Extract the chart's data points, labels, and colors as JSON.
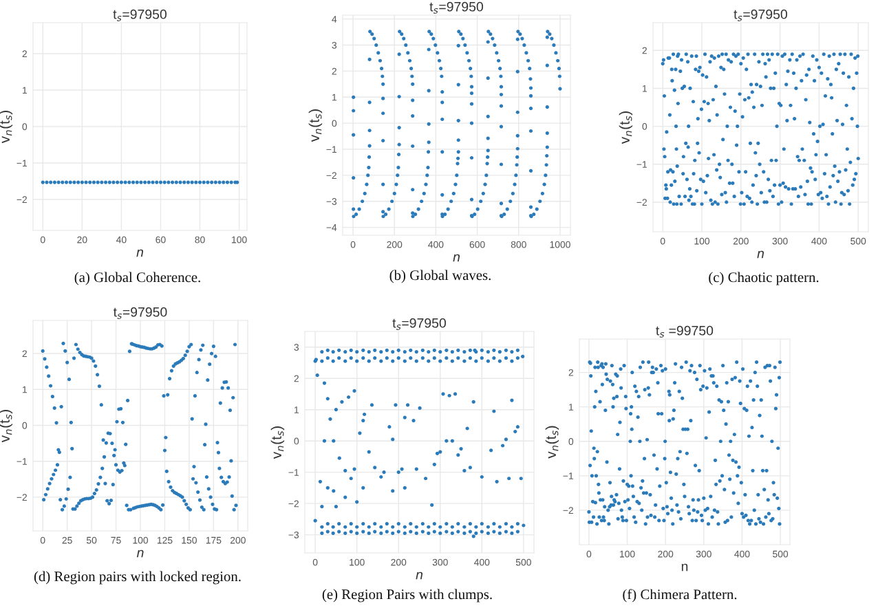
{
  "chart_data": [
    {
      "type": "scatter",
      "title": "t$_{s}$=97950",
      "xlabel": "n",
      "ylabel": "v$_{n}$(t$_{s}$)",
      "xlim": [
        -5,
        104
      ],
      "ylim": [
        -2.85,
        2.85
      ],
      "xticks": [
        0,
        20,
        40,
        60,
        80,
        100
      ],
      "yticks": [
        -2,
        -1,
        0,
        1,
        2
      ],
      "grid": true,
      "marker": "circle",
      "color": "#2b7bba",
      "annotations": [
        "(a) Global Coherence."
      ],
      "x": [
        0,
        2,
        4,
        6,
        8,
        10,
        12,
        14,
        16,
        18,
        20,
        22,
        24,
        26,
        28,
        30,
        32,
        34,
        36,
        38,
        40,
        42,
        44,
        46,
        48,
        50,
        52,
        54,
        56,
        58,
        60,
        62,
        64,
        66,
        68,
        70,
        72,
        74,
        76,
        78,
        80,
        82,
        84,
        86,
        88,
        90,
        92,
        94,
        96,
        98,
        99
      ],
      "values": [
        -1.53,
        -1.53,
        -1.53,
        -1.53,
        -1.53,
        -1.53,
        -1.53,
        -1.53,
        -1.53,
        -1.53,
        -1.53,
        -1.53,
        -1.53,
        -1.53,
        -1.53,
        -1.53,
        -1.53,
        -1.53,
        -1.53,
        -1.53,
        -1.53,
        -1.53,
        -1.53,
        -1.53,
        -1.53,
        -1.53,
        -1.53,
        -1.53,
        -1.53,
        -1.53,
        -1.53,
        -1.53,
        -1.53,
        -1.53,
        -1.53,
        -1.53,
        -1.53,
        -1.53,
        -1.53,
        -1.53,
        -1.53,
        -1.53,
        -1.53,
        -1.53,
        -1.53,
        -1.53,
        -1.53,
        -1.53,
        -1.53,
        -1.53,
        -1.53
      ]
    },
    {
      "type": "scatter",
      "title": "t$_{s}$=97950",
      "xlabel": "n",
      "ylabel": "v$_{n}$(t$_{s}$)",
      "xlim": [
        -50,
        1050
      ],
      "ylim": [
        -4.3,
        4.15
      ],
      "xticks": [
        0,
        200,
        400,
        600,
        800,
        1000
      ],
      "yticks": [
        -4,
        -3,
        -2,
        -1,
        0,
        1,
        2,
        3,
        4
      ],
      "grid": true,
      "marker": "circle",
      "color": "#2b7bba",
      "annotations": [
        "(b) Global waves."
      ],
      "x": [
        3,
        15,
        30,
        45,
        57,
        66,
        72,
        76,
        78,
        2,
        2,
        2,
        2,
        2,
        80,
        80,
        80,
        80,
        82,
        92,
        102,
        112,
        122,
        131,
        138,
        142,
        145,
        145,
        145,
        145,
        145,
        145,
        146,
        158,
        173,
        188,
        200,
        209,
        215,
        219,
        221,
        223,
        223,
        223,
        223,
        225,
        235,
        245,
        255,
        265,
        274,
        281,
        285,
        288,
        288,
        288,
        288,
        288,
        288,
        289,
        301,
        316,
        331,
        343,
        352,
        358,
        362,
        364,
        366,
        366,
        366,
        366,
        368,
        378,
        388,
        398,
        408,
        417,
        424,
        428,
        431,
        431,
        431,
        431,
        431,
        431,
        432,
        444,
        459,
        474,
        486,
        495,
        501,
        505,
        507,
        509,
        509,
        509,
        509,
        509,
        511,
        521,
        531,
        541,
        551,
        560,
        567,
        571,
        573,
        573,
        573,
        573,
        573,
        573,
        573,
        575,
        587,
        602,
        617,
        629,
        638,
        644,
        648,
        650,
        652,
        652,
        652,
        652,
        652,
        654,
        664,
        674,
        684,
        694,
        703,
        710,
        714,
        716,
        716,
        716,
        716,
        716,
        716,
        716,
        718,
        730,
        745,
        760,
        772,
        781,
        787,
        791,
        793,
        795,
        795,
        795,
        795,
        795,
        797,
        807,
        817,
        827,
        837,
        846,
        853,
        857,
        859,
        859,
        859,
        859,
        859,
        859,
        859,
        861,
        873,
        888,
        903,
        915,
        924,
        930,
        934,
        936,
        938,
        938,
        938,
        938,
        938,
        940,
        950,
        960,
        970,
        980,
        989,
        995,
        998,
        1000
      ],
      "values": [
        -3.58,
        -3.5,
        -3.3,
        -3.0,
        -2.7,
        -2.35,
        -2.0,
        -1.7,
        -1.3,
        1.0,
        0.48,
        -0.45,
        -2.1,
        -3.3,
        2.45,
        0.8,
        -0.28,
        -0.87,
        3.52,
        3.42,
        3.25,
        3.0,
        2.7,
        2.4,
        2.1,
        1.8,
        1.5,
        0.95,
        0.38,
        -0.67,
        -2.35,
        -3.4,
        -3.58,
        -3.5,
        -3.3,
        -3.0,
        -2.7,
        -2.35,
        -2.0,
        -1.7,
        -1.2,
        2.65,
        1.02,
        -0.17,
        -0.82,
        3.52,
        3.42,
        3.25,
        3.0,
        2.7,
        2.4,
        2.1,
        1.8,
        1.5,
        0.88,
        0.28,
        -0.88,
        -2.55,
        -3.45,
        -3.58,
        -3.5,
        -3.3,
        -3.0,
        -2.7,
        -2.35,
        -2.0,
        -1.7,
        -1.1,
        2.83,
        1.25,
        -0.03,
        -0.73,
        3.52,
        3.42,
        3.25,
        3.0,
        2.7,
        2.4,
        2.1,
        1.8,
        1.2,
        0.8,
        0.15,
        -1.1,
        -2.75,
        -3.5,
        -3.58,
        -3.5,
        -3.3,
        -3.0,
        -2.7,
        -2.35,
        -2.0,
        -1.55,
        -1.35,
        2.98,
        1.48,
        0.1,
        -0.65,
        -1.1,
        3.52,
        3.42,
        3.25,
        3.0,
        2.7,
        2.4,
        2.1,
        1.8,
        1.4,
        1.15,
        0.74,
        0.0,
        -1.33,
        -2.93,
        -3.55,
        -3.58,
        -3.5,
        -3.3,
        -3.0,
        -2.7,
        -2.35,
        -2.0,
        -1.55,
        -1.3,
        3.12,
        1.73,
        0.26,
        -0.58,
        -1.05,
        3.52,
        3.42,
        3.25,
        3.0,
        2.7,
        2.4,
        2.1,
        1.8,
        1.4,
        1.1,
        0.66,
        -0.13,
        -1.58,
        -3.08,
        -3.55,
        -3.58,
        -3.5,
        -3.3,
        -3.0,
        -2.7,
        -2.35,
        -2.0,
        -1.6,
        -1.3,
        3.22,
        1.98,
        0.42,
        -0.48,
        -0.98,
        3.52,
        3.42,
        3.25,
        3.0,
        2.7,
        2.4,
        2.1,
        1.7,
        1.35,
        1.05,
        0.57,
        -0.3,
        -1.83,
        -3.22,
        -3.55,
        -3.58,
        -3.5,
        -3.3,
        -3.0,
        -2.7,
        -2.35,
        -2.0,
        -1.6,
        -1.25,
        3.3,
        2.22,
        0.62,
        -0.38,
        -0.92,
        3.52,
        3.42,
        3.25,
        3.0,
        2.7,
        2.4,
        2.1,
        1.8,
        1.32
      ]
    },
    {
      "type": "scatter",
      "title": "t$_{s}$=97950",
      "xlabel": "n",
      "ylabel": "v$_{n}$(t$_{s}$)",
      "xlim": [
        -25,
        526
      ],
      "ylim": [
        -2.78,
        2.73
      ],
      "xticks": [
        0,
        100,
        200,
        300,
        400,
        500
      ],
      "yticks": [
        -2,
        -1,
        0,
        1,
        2
      ],
      "grid": true,
      "marker": "circle",
      "color": "#2b7bba",
      "annotations": [
        "(c) Chaotic pattern."
      ],
      "x": [
        0,
        2,
        3,
        4,
        5,
        6,
        8,
        9,
        10,
        12,
        13,
        14,
        17,
        18,
        19,
        20,
        22,
        23,
        24,
        26,
        27,
        28,
        30,
        31,
        33,
        34,
        35,
        36,
        37,
        38,
        39,
        40,
        42,
        45,
        47,
        48,
        50,
        52,
        53,
        55,
        57,
        59,
        60,
        62,
        64,
        65,
        66,
        67,
        69,
        70,
        72,
        74,
        76,
        78,
        79,
        81,
        82,
        84,
        86,
        87,
        89,
        90,
        92,
        93,
        95,
        97,
        99,
        100,
        102,
        104,
        106,
        108,
        110,
        112,
        114,
        116,
        117,
        119,
        121,
        123,
        125,
        127,
        129,
        131,
        132,
        134,
        136,
        138,
        139,
        141,
        143,
        145,
        147,
        149,
        151,
        152,
        154,
        156,
        158,
        160,
        162,
        163,
        165,
        167,
        168,
        171,
        173,
        175,
        177,
        179,
        181,
        183,
        185,
        187,
        189,
        191,
        193,
        195,
        197,
        199,
        200,
        202,
        204,
        206,
        208,
        210,
        212,
        214,
        216,
        218,
        220,
        222,
        224,
        226,
        228,
        229,
        231,
        233,
        235,
        237,
        239,
        240,
        242,
        244,
        246,
        248,
        250,
        252,
        254,
        256,
        258,
        260,
        262,
        264,
        266,
        268,
        270,
        272,
        274,
        276,
        278,
        280,
        282,
        284,
        286,
        288,
        290,
        292,
        294,
        296,
        298,
        300,
        302,
        304,
        306,
        308,
        310,
        312,
        314,
        316,
        318,
        320,
        322,
        325,
        327,
        329,
        331,
        333,
        335,
        337,
        339,
        341,
        343,
        345,
        347,
        349,
        351,
        353,
        355,
        357,
        359,
        362,
        364,
        366,
        368,
        370,
        372,
        374,
        376,
        378,
        380,
        382,
        384,
        386,
        388,
        390,
        392,
        394,
        396,
        398,
        400,
        402,
        404,
        406,
        408,
        410,
        412,
        414,
        416,
        418,
        420,
        422,
        424,
        426,
        428,
        430,
        432,
        434,
        436,
        438,
        440,
        442,
        444,
        446,
        448,
        450,
        452,
        454,
        456,
        458,
        460,
        462,
        464,
        466,
        468,
        470,
        472,
        474,
        476,
        478,
        480,
        482,
        484,
        486,
        488,
        490,
        492,
        494,
        496,
        498,
        499,
        500
      ],
      "values": [
        1.65,
        1.75,
        -0.6,
        0.8,
        -0.8,
        -1.9,
        -1.55,
        -1.65,
        -0.15,
        -1.9,
        -1.2,
        1.8,
        1.8,
        0.3,
        -2.0,
        -1.15,
        -1.55,
        1.5,
        1.2,
        -1.2,
        1.9,
        -2.05,
        0.95,
        -1.45,
        1.5,
        0.0,
        -0.6,
        -2.05,
        -1.05,
        1.85,
        0.6,
        1.9,
        -1.85,
        1.45,
        -2.05,
        1.75,
        1.0,
        -1.25,
        -0.8,
        1.05,
        -1.85,
        -0.45,
        1.9,
        -1.4,
        1.7,
        -0.55,
        0.0,
        -1.95,
        -1.65,
        1.0,
        -1.85,
        1.85,
        -2.05,
        0.65,
        -1.25,
        -2.05,
        -0.9,
        1.5,
        1.85,
        -1.7,
        -0.45,
        0.2,
        1.45,
        -0.7,
        1.55,
        -1.4,
        0.45,
        -2.05,
        1.35,
        -1.45,
        0.65,
        1.9,
        -1.75,
        1.3,
        -1.3,
        0.6,
        -0.85,
        0.15,
        1.7,
        -1.95,
        1.85,
        -2.05,
        0.7,
        -0.75,
        1.8,
        -2.0,
        1.05,
        -1.15,
        0.3,
        -2.05,
        1.85,
        -1.0,
        -1.35,
        1.55,
        -1.8,
        1.9,
        -0.35,
        1.5,
        0.85,
        -1.75,
        1.9,
        -2.0,
        0.0,
        -0.9,
        1.75,
        -1.5,
        0.5,
        1.7,
        -1.0,
        -1.5,
        1.9,
        -1.85,
        0.4,
        1.85,
        -0.5,
        0.0,
        1.9,
        -1.2,
        0.85,
        -2.05,
        1.65,
        -1.75,
        0.25,
        1.8,
        -2.05,
        0.7,
        -1.2,
        1.5,
        -1.85,
        1.9,
        0.75,
        -1.9,
        -0.45,
        1.1,
        -2.0,
        0.9,
        -1.55,
        0.5,
        1.9,
        -0.7,
        -1.3,
        1.1,
        -2.05,
        -0.45,
        1.7,
        -1.0,
        1.05,
        -1.75,
        0.55,
        1.9,
        -1.2,
        -2.0,
        1.65,
        1.3,
        -2.0,
        1.9,
        -1.4,
        1.75,
        -1.7,
        1.0,
        -0.9,
        1.9,
        -1.85,
        1.0,
        -1.55,
        1.4,
        -0.9,
        0.0,
        1.9,
        -2.05,
        0.6,
        -1.55,
        0.55,
        -2.0,
        1.85,
        -1.5,
        -0.6,
        1.9,
        -1.6,
        1.1,
        0.15,
        1.45,
        -1.65,
        1.75,
        0.55,
        -2.05,
        1.9,
        -1.65,
        1.4,
        0.2,
        -1.65,
        1.0,
        1.75,
        -0.8,
        -1.85,
        -0.9,
        1.85,
        -1.6,
        1.2,
        -0.6,
        1.9,
        -0.9,
        -1.8,
        0.7,
        1.35,
        -1.45,
        -2.05,
        1.5,
        0.1,
        -1.1,
        -2.05,
        -1.2,
        1.85,
        -0.2,
        1.2,
        -1.4,
        -0.75,
        1.75,
        -0.4,
        -1.8,
        1.55,
        0.0,
        -1.75,
        1.4,
        -1.9,
        0.05,
        1.9,
        -1.25,
        0.8,
        -0.75,
        -1.85,
        1.25,
        -2.05,
        1.85,
        -1.6,
        1.1,
        0.75,
        -0.2,
        -1.3,
        1.9,
        -1.05,
        -2.0,
        1.5,
        0.15,
        -1.45,
        1.65,
        -1.2,
        1.9,
        -2.05,
        -1.75,
        0.05,
        1.4,
        -1.8,
        1.9,
        -1.15,
        0.55,
        -0.6,
        -1.7,
        1.3,
        -2.05,
        -0.95,
        1.9,
        0.2,
        -1.55,
        1.0,
        -1.4,
        1.8,
        -1.25,
        1.4,
        0.0,
        1.85,
        -0.85
      ]
    },
    {
      "type": "scatter",
      "title": "t$_{s}$=97950",
      "xlabel": "n",
      "ylabel": "v$_{n}$(t$_{s}$)",
      "xlim": [
        -10,
        210
      ],
      "ylim": [
        -2.94,
        2.92
      ],
      "xticks": [
        0,
        25,
        50,
        75,
        100,
        125,
        150,
        175,
        200
      ],
      "yticks": [
        -2,
        -1,
        0,
        1,
        2
      ],
      "grid": true,
      "marker": "circle",
      "color": "#2b7bba",
      "annotations": [
        "(d) Region pairs with locked region."
      ],
      "x": [
        0,
        1,
        2,
        3,
        4,
        5,
        6,
        7,
        8,
        9,
        10,
        11,
        12,
        13,
        14,
        15,
        16,
        17,
        18,
        19,
        20,
        21,
        22,
        23,
        24,
        25,
        26,
        27,
        28,
        29,
        30,
        31,
        32,
        33,
        34,
        35,
        36,
        37,
        38,
        39,
        40,
        41,
        42,
        43,
        44,
        45,
        46,
        47,
        48,
        49,
        50,
        51,
        52,
        53,
        54,
        55,
        56,
        57,
        58,
        59,
        60,
        61,
        62,
        63,
        64,
        65,
        66,
        67,
        68,
        69,
        70,
        71,
        72,
        73,
        74,
        75,
        76,
        77,
        78,
        79,
        80,
        81,
        82,
        83,
        84,
        85,
        86,
        87,
        88,
        89,
        90,
        91,
        92,
        93,
        94,
        95,
        96,
        97,
        98,
        99,
        100,
        101,
        102,
        103,
        104,
        105,
        106,
        107,
        108,
        109,
        110,
        111,
        112,
        113,
        114,
        115,
        116,
        117,
        118,
        119,
        120,
        121,
        122,
        123,
        124,
        125,
        126,
        127,
        128,
        129,
        130,
        131,
        132,
        133,
        134,
        135,
        136,
        137,
        138,
        139,
        140,
        141,
        142,
        143,
        144,
        145,
        146,
        147,
        148,
        149,
        150,
        151,
        152,
        153,
        154,
        155,
        156,
        157,
        158,
        159,
        160,
        161,
        162,
        163,
        164,
        165,
        166,
        167,
        168,
        169,
        170,
        171,
        172,
        173,
        174,
        175,
        176,
        177,
        178,
        179,
        180,
        181,
        182,
        183,
        184,
        185,
        186,
        187,
        188,
        189,
        190,
        191,
        192,
        193,
        194,
        195,
        196,
        197,
        198
      ],
      "values": [
        2.07,
        -2.07,
        1.85,
        -1.93,
        1.62,
        -1.77,
        1.37,
        -1.62,
        1.1,
        -1.49,
        0.8,
        -1.37,
        0.48,
        -1.25,
        0.07,
        -1.1,
        -0.68,
        -0.75,
        -2.07,
        0.52,
        -2.35,
        2.28,
        -2.25,
        2.07,
        -2.05,
        1.75,
        -1.78,
        1.28,
        -1.45,
        0.08,
        -0.65,
        -2.33,
        1.87,
        -2.33,
        2.25,
        -2.25,
        2.12,
        -2.17,
        2.03,
        -2.1,
        1.97,
        -2.07,
        1.93,
        -2.05,
        1.92,
        -2.04,
        1.91,
        -2.04,
        1.9,
        -2.03,
        1.87,
        -2.0,
        1.79,
        -1.9,
        1.65,
        -1.8,
        1.41,
        -1.63,
        1.09,
        -1.45,
        0.57,
        -1.2,
        -0.41,
        -0.88,
        -1.62,
        -0.49,
        -2.1,
        -0.22,
        -2.18,
        -0.23,
        -2.09,
        -0.5,
        -1.65,
        -0.84,
        -0.68,
        -1.1,
        0.1,
        -1.25,
        0.45,
        -1.3,
        0.46,
        -1.26,
        0.08,
        -1.05,
        -1.12,
        -0.53,
        -2.23,
        0.69,
        -2.35,
        2.06,
        -2.35,
        2.27,
        2.26,
        -2.31,
        2.24,
        -2.29,
        2.22,
        -2.27,
        2.21,
        -2.26,
        2.19,
        -2.25,
        2.18,
        -2.24,
        2.17,
        -2.23,
        2.15,
        -2.22,
        2.14,
        -2.21,
        2.13,
        -2.2,
        2.13,
        -2.21,
        2.15,
        -2.23,
        2.18,
        -2.26,
        2.24,
        -2.3,
        2.25,
        -2.35,
        2.21,
        -2.22,
        0.82,
        -0.7,
        -0.34,
        -1.28,
        0.85,
        -1.57,
        1.3,
        -1.72,
        1.52,
        -1.82,
        1.65,
        -1.87,
        1.71,
        -1.9,
        1.74,
        -1.93,
        1.77,
        -1.96,
        1.81,
        -2.0,
        1.86,
        -2.1,
        1.95,
        -2.2,
        2.06,
        -2.3,
        2.19,
        -2.35,
        2.25,
        0.18,
        -1.49,
        -1.15,
        0.82,
        -1.6,
        1.47,
        -1.86,
        1.83,
        -2.08,
        2.1,
        -2.28,
        2.23,
        -2.35,
        -0.54,
        0.03,
        -1.44,
        1.26,
        -1.77,
        1.7,
        -2.0,
        2.0,
        -2.2,
        2.2,
        -2.33,
        1.92,
        -2.35,
        -0.48,
        -0.76,
        -1.2,
        0.62,
        -1.45,
        1.04,
        -1.57,
        1.2,
        -1.62,
        1.21,
        -1.58,
        1.04,
        -1.44,
        0.42,
        -0.99,
        -1.97,
        0.77,
        -2.35,
        2.25,
        -2.23
      ]
    },
    {
      "type": "scatter",
      "title": "t$_{s}$=97950",
      "xlabel": "n",
      "ylabel": "v$_{n}$(t$_{s}$)",
      "xlim": [
        -25,
        525
      ],
      "ylim": [
        -3.58,
        3.5
      ],
      "xticks": [
        0,
        100,
        200,
        300,
        400,
        500
      ],
      "yticks": [
        -3,
        -2,
        -1,
        0,
        1,
        2,
        3
      ],
      "grid": true,
      "marker": "circle",
      "color": "#2b7bba",
      "annotations": [
        "(e) Region Pairs with clumps."
      ],
      "x": [
        16,
        16,
        16,
        16,
        30,
        30,
        30,
        30,
        43,
        43,
        43,
        43,
        57,
        57,
        57,
        57,
        72,
        72,
        72,
        72,
        86,
        86,
        86,
        86,
        100,
        100,
        100,
        100,
        115,
        115,
        115,
        115,
        129,
        129,
        129,
        129,
        143,
        143,
        143,
        143,
        158,
        158,
        158,
        158,
        172,
        172,
        172,
        172,
        186,
        186,
        186,
        186,
        200,
        200,
        200,
        200,
        215,
        215,
        215,
        215,
        229,
        229,
        229,
        229,
        243,
        243,
        243,
        243,
        258,
        258,
        258,
        258,
        272,
        272,
        272,
        272,
        286,
        286,
        286,
        286,
        300,
        300,
        300,
        300,
        315,
        315,
        315,
        315,
        329,
        329,
        329,
        329,
        343,
        343,
        343,
        343,
        358,
        358,
        358,
        358,
        372,
        372,
        372,
        372,
        386,
        386,
        386,
        386,
        400,
        400,
        400,
        400,
        415,
        415,
        415,
        415,
        429,
        429,
        429,
        429,
        443,
        443,
        443,
        443,
        458,
        458,
        458,
        458,
        472,
        472,
        472,
        472,
        486,
        486,
        486,
        486,
        0,
        2,
        0,
        5,
        12,
        16,
        22,
        22,
        30,
        30,
        36,
        44,
        44,
        50,
        50,
        58,
        64,
        72,
        72,
        80,
        86,
        94,
        94,
        100,
        107,
        115,
        118,
        115,
        129,
        136,
        143,
        158,
        165,
        178,
        186,
        186,
        193,
        200,
        208,
        215,
        215,
        222,
        236,
        243,
        251,
        265,
        280,
        286,
        293,
        300,
        307,
        315,
        322,
        329,
        336,
        343,
        350,
        358,
        365,
        372,
        380,
        400,
        422,
        429,
        436,
        450,
        458,
        465,
        472,
        480,
        486,
        494,
        500,
        498,
        380,
        383
      ],
      "values": [
        2.85,
        2.55,
        -2.95,
        -2.75,
        2.9,
        2.65,
        -2.9,
        -2.65,
        2.85,
        2.55,
        -2.95,
        -2.75,
        2.9,
        2.65,
        -2.9,
        -2.65,
        2.85,
        2.55,
        -2.95,
        -2.75,
        2.9,
        2.65,
        -2.9,
        -2.65,
        2.85,
        2.55,
        -2.95,
        -2.75,
        2.9,
        2.65,
        -2.9,
        -2.65,
        2.85,
        2.55,
        -2.95,
        -2.75,
        2.9,
        2.65,
        -2.9,
        -2.65,
        2.85,
        2.55,
        -2.95,
        -2.75,
        2.9,
        2.65,
        -2.9,
        -2.65,
        2.85,
        2.55,
        -2.95,
        -2.75,
        2.9,
        2.65,
        -2.9,
        -2.65,
        2.85,
        2.55,
        -2.95,
        -2.75,
        2.9,
        2.65,
        -2.9,
        -2.65,
        2.85,
        2.55,
        -2.95,
        -2.75,
        2.9,
        2.65,
        -2.9,
        -2.65,
        2.85,
        2.55,
        -2.95,
        -2.75,
        2.9,
        2.65,
        -2.9,
        -2.65,
        2.85,
        2.55,
        -2.95,
        -2.75,
        2.9,
        2.65,
        -2.9,
        -2.65,
        2.85,
        2.55,
        -2.95,
        -2.75,
        2.9,
        2.65,
        -2.9,
        -2.65,
        2.85,
        2.55,
        -2.95,
        -2.75,
        2.9,
        2.65,
        -2.9,
        -2.65,
        2.85,
        2.55,
        -2.95,
        -2.75,
        2.9,
        2.65,
        -2.9,
        -2.65,
        2.85,
        2.55,
        -2.95,
        -2.75,
        2.9,
        2.65,
        -2.9,
        -2.65,
        2.85,
        2.55,
        -2.95,
        -2.75,
        2.9,
        2.65,
        -2.9,
        -2.65,
        2.85,
        2.55,
        -2.95,
        -2.75,
        2.9,
        2.65,
        -2.9,
        -2.65,
        2.55,
        2.6,
        -2.55,
        2.1,
        -1.3,
        -2.1,
        0.0,
        1.85,
        1.35,
        -1.5,
        0.7,
        0.0,
        -1.6,
        1.0,
        -2.1,
        -0.55,
        1.25,
        -0.95,
        -1.8,
        1.4,
        -1.2,
        -0.9,
        1.6,
        -1.95,
        0.25,
        0.65,
        0.85,
        -1.5,
        -0.35,
        1.15,
        -0.85,
        -1.15,
        -1.0,
        0.45,
        0.05,
        -1.6,
        1.15,
        -1.0,
        -0.9,
        -1.5,
        0.75,
        1.15,
        0.65,
        -0.9,
        1.05,
        -1.2,
        -2.05,
        -0.75,
        -0.4,
        -0.35,
        1.5,
        0.0,
        1.45,
        0.0,
        1.5,
        -0.45,
        -0.25,
        -0.95,
        0.4,
        -0.85,
        1.25,
        -1.15,
        -0.3,
        0.95,
        -1.3,
        -0.15,
        0.05,
        -1.2,
        1.3,
        0.3,
        0.45,
        -1.2,
        -2.7,
        2.7,
        -3.05,
        2.9
      ]
    },
    {
      "type": "scatter",
      "title": "t$_{s}$ =99750",
      "xlabel": "n",
      "ylabel": "v$_{n}$(t$_{s}$)",
      "xlim": [
        -25,
        525
      ],
      "ylim": [
        -3.0,
        2.97
      ],
      "xticks": [
        0,
        100,
        200,
        300,
        400,
        500
      ],
      "yticks": [
        -2,
        -1,
        0,
        1,
        2
      ],
      "grid": true,
      "marker": "circle",
      "color": "#2b7bba",
      "annotations": [
        "(f) Chimera Pattern."
      ],
      "x": [
        0,
        1,
        2,
        3,
        4,
        5,
        6,
        7,
        8,
        10,
        12,
        13,
        14,
        15,
        16,
        17,
        18,
        19,
        21,
        22,
        23,
        24,
        25,
        26,
        27,
        29,
        30,
        32,
        33,
        34,
        35,
        36,
        37,
        38,
        40,
        41,
        43,
        44,
        45,
        47,
        48,
        50,
        52,
        54,
        55,
        56,
        58,
        59,
        60,
        62,
        63,
        64,
        65,
        66,
        68,
        70,
        72,
        73,
        74,
        75,
        76,
        78,
        80,
        81,
        83,
        84,
        85,
        87,
        89,
        90,
        92,
        94,
        96,
        97,
        98,
        100,
        102,
        104,
        106,
        108,
        109,
        110,
        111,
        112,
        113,
        114,
        116,
        118,
        120,
        122,
        124,
        126,
        128,
        130,
        131,
        133,
        134,
        136,
        138,
        140,
        141,
        143,
        145,
        146,
        148,
        150,
        152,
        153,
        155,
        156,
        158,
        160,
        162,
        164,
        166,
        168,
        170,
        172,
        174,
        176,
        178,
        180,
        181,
        183,
        185,
        188,
        190,
        192,
        194,
        196,
        198,
        199,
        200,
        202,
        204,
        206,
        209,
        210,
        211,
        213,
        215,
        217,
        219,
        220,
        222,
        224,
        226,
        228,
        230,
        232,
        234,
        236,
        238,
        240,
        242,
        244,
        246,
        248,
        250,
        252,
        254,
        256,
        258,
        260,
        262,
        264,
        266,
        268,
        270,
        272,
        274,
        276,
        278,
        280,
        282,
        284,
        286,
        288,
        290,
        292,
        294,
        296,
        298,
        300,
        302,
        304,
        306,
        308,
        310,
        312,
        314,
        316,
        318,
        320,
        322,
        324,
        326,
        328,
        330,
        332,
        334,
        336,
        338,
        340,
        342,
        344,
        346,
        348,
        350,
        352,
        354,
        356,
        358,
        360,
        362,
        364,
        366,
        368,
        370,
        372,
        374,
        376,
        378,
        380,
        382,
        384,
        386,
        388,
        390,
        392,
        394,
        396,
        398,
        400,
        402,
        404,
        406,
        408,
        410,
        412,
        414,
        416,
        418,
        420,
        422,
        424,
        426,
        428,
        430,
        432,
        434,
        436,
        438,
        440,
        442,
        444,
        446,
        448,
        450,
        452,
        454,
        456,
        458,
        460,
        462,
        464,
        466,
        468,
        470,
        472,
        474,
        476,
        478,
        480,
        482,
        484,
        486,
        488,
        490,
        492,
        494,
        496,
        497,
        498,
        499
      ],
      "values": [
        -2.05,
        -2.35,
        2.3,
        -0.7,
        2.27,
        1.9,
        0.3,
        -2.35,
        -1.0,
        -1.75,
        -2.2,
        -0.2,
        -0.5,
        1.0,
        2.15,
        -1.78,
        1.45,
        -1.0,
        -2.4,
        -0.3,
        2.3,
        2.15,
        -1.25,
        -1.5,
        -2.2,
        1.15,
        -1.7,
        2.2,
        -2.3,
        2.25,
        1.65,
        -1.7,
        2.15,
        -2.2,
        -2.3,
        -1.9,
        0.9,
        2.25,
        1.95,
        -0.6,
        1.8,
        -2.0,
        -2.4,
        -1.9,
        -1.2,
        1.75,
        -1.85,
        -1.6,
        2.2,
        1.65,
        1.0,
        -1.85,
        1.25,
        -1.7,
        -1.75,
        1.95,
        -1.55,
        1.3,
        1.9,
        0.2,
        -2.25,
        -1.8,
        -0.8,
        0.55,
        2.1,
        1.55,
        -2.0,
        -2.2,
        -2.3,
        -1.15,
        2.2,
        -1.75,
        1.3,
        0.95,
        -2.3,
        -1.25,
        -1.7,
        -1.3,
        -1.95,
        0.0,
        0.8,
        -1.0,
        1.0,
        0.35,
        2.0,
        -1.3,
        -1.6,
        -2.2,
        1.6,
        -2.35,
        1.45,
        -1.75,
        0.7,
        1.3,
        -1.8,
        0.0,
        2.15,
        -1.35,
        -2.0,
        -1.15,
        2.3,
        -1.5,
        -0.5,
        1.5,
        -2.4,
        -1.5,
        0.05,
        -2.2,
        1.55,
        2.3,
        1.35,
        -1.55,
        -2.15,
        2.0,
        2.15,
        2.0,
        -0.4,
        -2.2,
        -1.85,
        2.1,
        -0.8,
        1.7,
        0.8,
        -2.3,
        -1.3,
        2.2,
        0.8,
        2.05,
        -1.95,
        -2.3,
        -0.5,
        0.0,
        2.1,
        -1.2,
        -1.9,
        -2.1,
        1.45,
        0.6,
        1.35,
        -0.9,
        -1.65,
        -2.0,
        -2.4,
        0.65,
        0.9,
        1.7,
        2.25,
        -0.95,
        -1.85,
        -0.5,
        -2.05,
        1.45,
        -0.3,
        -2.25,
        2.15,
        1.25,
        0.35,
        -1.25,
        -1.6,
        0.35,
        2.3,
        -0.35,
        0.35,
        -1.9,
        -2.1,
        2.05,
        0.6,
        2.2,
        -2.3,
        -1.7,
        -2.0,
        2.0,
        -0.7,
        -2.3,
        1.8,
        -2.05,
        -1.7,
        -0.85,
        2.2,
        1.5,
        -2.15,
        -2.3,
        1.6,
        -1.65,
        2.05,
        -2.0,
        0.1,
        1.55,
        -1.95,
        -2.4,
        0.85,
        2.1,
        -1.6,
        1.9,
        -2.2,
        1.9,
        1.7,
        -2.0,
        -0.55,
        -1.25,
        1.6,
        -2.05,
        -2.4,
        1.2,
        -1.15,
        0.0,
        1.15,
        -1.0,
        2.2,
        0.9,
        -1.4,
        -2.35,
        0.5,
        1.7,
        -2.3,
        1.15,
        -0.4,
        -1.1,
        0.0,
        -2.2,
        1.8,
        -0.55,
        -1.5,
        0.2,
        1.85,
        -0.6,
        2.3,
        -1.0,
        -1.8,
        -0.75,
        1.75,
        1.1,
        -1.2,
        -2.1,
        2.1,
        -2.2,
        0.95,
        -1.55,
        -2.15,
        0.9,
        1.6,
        -2.3,
        0.15,
        -2.4,
        1.75,
        -2.3,
        0.4,
        -0.85,
        1.2,
        -2.0,
        2.0,
        -2.4,
        2.3,
        1.6,
        -1.55,
        -2.25,
        0.75,
        -2.35,
        1.2,
        0.15,
        -0.85,
        -2.4,
        -1.4,
        2.15,
        -2.2,
        -0.85,
        2.2,
        -1.7,
        -2.1,
        2.2,
        1.75,
        -2.3,
        0.0,
        -2.25,
        -1.2,
        -1.55,
        2.15,
        0.95,
        1.35,
        -1.65,
        -0.2,
        -1.95,
        1.85,
        -2.4,
        2.3
      ]
    }
  ]
}
